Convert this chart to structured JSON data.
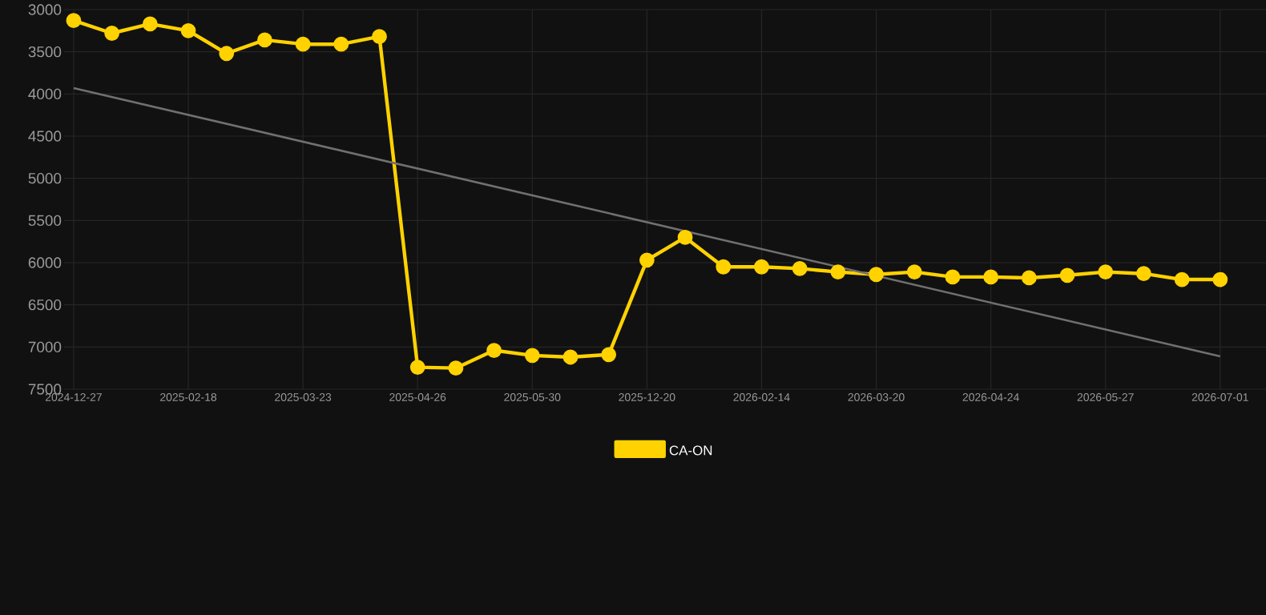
{
  "chart_data": {
    "type": "line",
    "categories": [
      "2024-12-27",
      null,
      null,
      "2025-02-18",
      null,
      null,
      "2025-03-23",
      null,
      null,
      "2025-04-26",
      null,
      null,
      "2025-05-30",
      null,
      null,
      "2025-12-20",
      null,
      null,
      "2026-02-14",
      null,
      null,
      "2026-03-20",
      null,
      null,
      "2026-04-24",
      null,
      null,
      "2026-05-27",
      null,
      null,
      "2026-07-01"
    ],
    "series": [
      {
        "name": "CA-ON",
        "color": "#ffd200",
        "marker": "circle",
        "values": [
          3130,
          3280,
          3170,
          3250,
          3520,
          3360,
          3410,
          3410,
          3320,
          7240,
          7250,
          7040,
          7100,
          7120,
          7090,
          5970,
          5700,
          6050,
          6050,
          6070,
          6110,
          6140,
          6110,
          6170,
          6170,
          6180,
          6150,
          6110,
          6130,
          6200,
          6200
        ]
      },
      {
        "type": "line",
        "color": "#707070",
        "marker": "none",
        "values": [
          3930,
          null,
          null,
          null,
          null,
          null,
          null,
          null,
          null,
          null,
          null,
          null,
          null,
          null,
          null,
          null,
          null,
          null,
          null,
          null,
          null,
          null,
          null,
          null,
          null,
          null,
          null,
          null,
          null,
          null,
          7110
        ]
      }
    ],
    "ylim": [
      7500,
      3000
    ],
    "yticks": [
      3000,
      3500,
      4000,
      4500,
      5000,
      5500,
      6000,
      6500,
      7000,
      7500
    ],
    "grid": true,
    "legend": "bottom"
  }
}
